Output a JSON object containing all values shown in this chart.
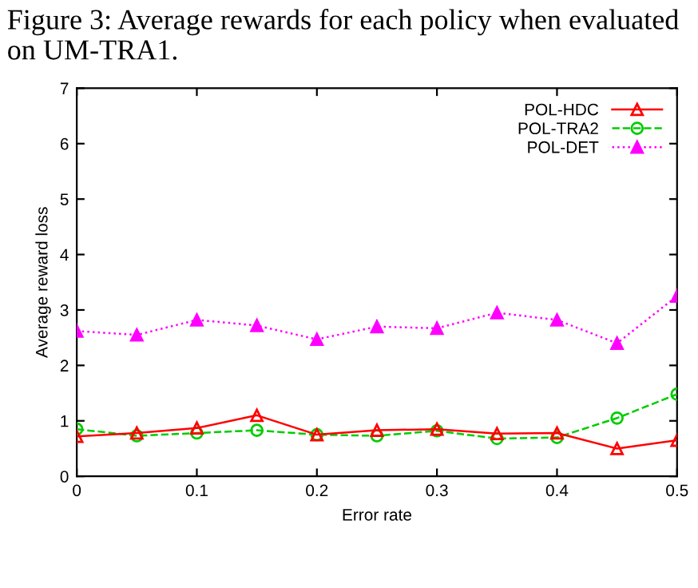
{
  "chart_data": {
    "type": "line",
    "annotations": [
      "Figure 3: Average rewards for each policy when evaluated on UM-TRA1."
    ],
    "xlabel": "Error rate",
    "ylabel": "Average reward loss",
    "x": [
      0,
      0.05,
      0.1,
      0.15,
      0.2,
      0.25,
      0.3,
      0.35,
      0.4,
      0.45,
      0.5
    ],
    "series": [
      {
        "name": "POL-HDC",
        "color": "#ff0000",
        "marker": "triangle",
        "line_style": "solid",
        "values": [
          0.72,
          0.78,
          0.87,
          1.1,
          0.75,
          0.83,
          0.85,
          0.77,
          0.78,
          0.5,
          0.65
        ]
      },
      {
        "name": "POL-TRA2",
        "color": "#00cc00",
        "marker": "circle",
        "line_style": "dashed",
        "values": [
          0.85,
          0.73,
          0.78,
          0.83,
          0.75,
          0.73,
          0.82,
          0.68,
          0.7,
          1.05,
          1.48
        ]
      },
      {
        "name": "POL-DET",
        "color": "#ff00ff",
        "marker": "triangle",
        "line_style": "dotted",
        "values": [
          2.62,
          2.55,
          2.82,
          2.72,
          2.47,
          2.7,
          2.67,
          2.95,
          2.82,
          2.4,
          3.25
        ]
      }
    ],
    "xlim": [
      0,
      0.5
    ],
    "xticks": [
      0,
      0.1,
      0.2,
      0.3,
      0.4,
      0.5
    ],
    "ylim": [
      0,
      7
    ],
    "yticks": [
      0,
      1,
      2,
      3,
      4,
      5,
      6,
      7
    ],
    "grid": false,
    "legend": "top right"
  }
}
